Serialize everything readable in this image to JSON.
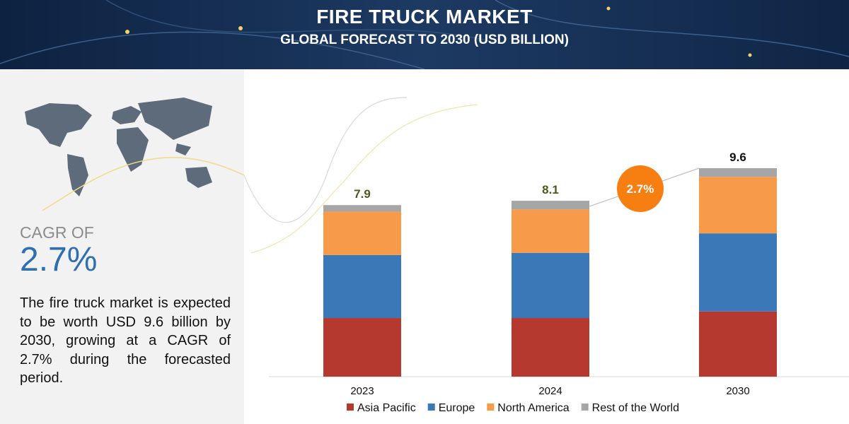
{
  "header": {
    "title": "FIRE TRUCK MARKET",
    "subtitle": "GLOBAL FORECAST TO 2030 (USD BILLION)"
  },
  "panel": {
    "cagr_caption": "CAGR OF",
    "cagr_value": "2.7%",
    "description": "The fire truck market is expected to be worth USD 9.6 billion by 2030, growing at a CAGR of 2.7% during the forecasted period."
  },
  "chart_data": {
    "type": "bar",
    "stacked": true,
    "categories": [
      "2023",
      "2024",
      "2030"
    ],
    "series": [
      {
        "name": "Asia Pacific",
        "color": "#b5392f",
        "values": [
          2.7,
          2.7,
          3.0
        ]
      },
      {
        "name": "Europe",
        "color": "#3a78b8",
        "values": [
          2.9,
          3.0,
          3.6
        ]
      },
      {
        "name": "North America",
        "color": "#f79a4a",
        "values": [
          2.0,
          2.0,
          2.6
        ]
      },
      {
        "name": "Rest of the World",
        "color": "#a6a6a6",
        "values": [
          0.3,
          0.4,
          0.4
        ]
      }
    ],
    "totals": [
      7.9,
      8.1,
      9.6
    ],
    "cagr_annotation": "2.7%"
  }
}
